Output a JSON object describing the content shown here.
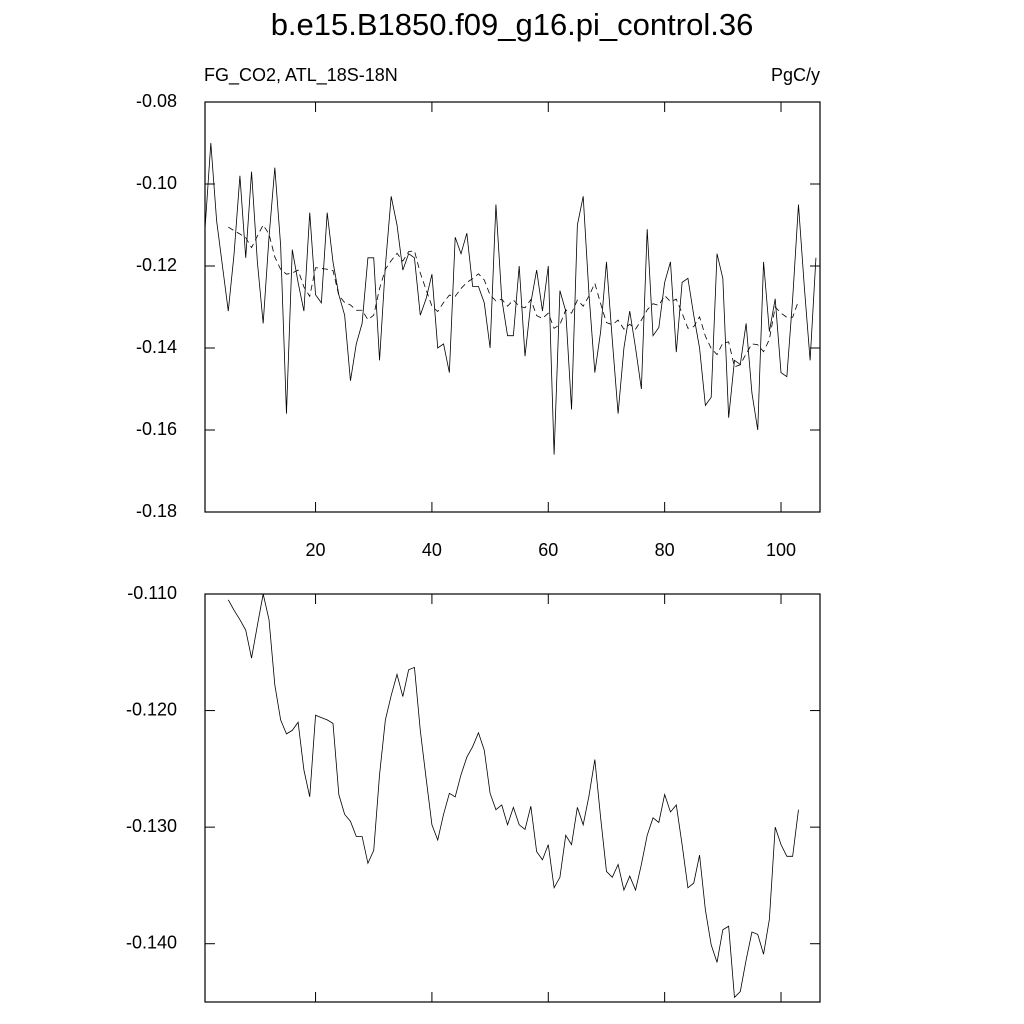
{
  "chart_data": [
    {
      "type": "line",
      "title": "b.e15.B1850.f09_g16.pi_control.36",
      "subtitle_left": "FG_CO2, ATL_18S-18N",
      "subtitle_right": "PgC/y",
      "x": [
        1,
        2,
        3,
        4,
        5,
        6,
        7,
        8,
        9,
        10,
        11,
        12,
        13,
        14,
        15,
        16,
        17,
        18,
        19,
        20,
        21,
        22,
        23,
        24,
        25,
        26,
        27,
        28,
        29,
        30,
        31,
        32,
        33,
        34,
        35,
        36,
        37,
        38,
        39,
        40,
        41,
        42,
        43,
        44,
        45,
        46,
        47,
        48,
        49,
        50,
        51,
        52,
        53,
        54,
        55,
        56,
        57,
        58,
        59,
        60,
        61,
        62,
        63,
        64,
        65,
        66,
        67,
        68,
        69,
        70,
        71,
        72,
        73,
        74,
        75,
        76,
        77,
        78,
        79,
        80,
        81,
        82,
        83,
        84,
        85,
        86,
        87,
        88,
        89,
        90,
        91,
        92,
        93,
        94,
        95,
        96,
        97,
        98,
        99,
        100,
        101,
        102,
        103,
        104,
        105,
        106
      ],
      "series": [
        {
          "color": "#000000",
          "dash": false,
          "values": [
            -0.111,
            -0.09,
            -0.109,
            -0.12,
            -0.131,
            -0.117,
            -0.098,
            -0.118,
            -0.097,
            -0.119,
            -0.134,
            -0.113,
            -0.096,
            -0.115,
            -0.156,
            -0.116,
            -0.124,
            -0.131,
            -0.107,
            -0.127,
            -0.129,
            -0.107,
            -0.119,
            -0.127,
            -0.132,
            -0.148,
            -0.139,
            -0.134,
            -0.118,
            -0.118,
            -0.143,
            -0.12,
            -0.103,
            -0.11,
            -0.121,
            -0.117,
            -0.118,
            -0.132,
            -0.128,
            -0.122,
            -0.14,
            -0.139,
            -0.146,
            -0.113,
            -0.117,
            -0.112,
            -0.125,
            -0.125,
            -0.129,
            -0.14,
            -0.105,
            -0.128,
            -0.137,
            -0.137,
            -0.12,
            -0.142,
            -0.129,
            -0.121,
            -0.131,
            -0.12,
            -0.166,
            -0.126,
            -0.131,
            -0.155,
            -0.11,
            -0.103,
            -0.127,
            -0.146,
            -0.136,
            -0.119,
            -0.138,
            -0.156,
            -0.14,
            -0.131,
            -0.14,
            -0.15,
            -0.111,
            -0.137,
            -0.135,
            -0.124,
            -0.119,
            -0.141,
            -0.124,
            -0.123,
            -0.132,
            -0.14,
            -0.154,
            -0.152,
            -0.117,
            -0.123,
            -0.157,
            -0.143,
            -0.144,
            -0.134,
            -0.151,
            -0.16,
            -0.119,
            -0.136,
            -0.128,
            -0.146,
            -0.147,
            -0.128,
            -0.105,
            -0.125,
            -0.143,
            -0.118
          ]
        },
        {
          "color": "#000000",
          "dash": true,
          "values": [
            null,
            null,
            null,
            null,
            -0.1105,
            -0.1114,
            -0.1122,
            -0.1131,
            -0.1155,
            -0.1127,
            -0.11,
            -0.1122,
            -0.1178,
            -0.1208,
            -0.122,
            -0.1217,
            -0.121,
            -0.1251,
            -0.1274,
            -0.1204,
            -0.1206,
            -0.1208,
            -0.1211,
            -0.1272,
            -0.1289,
            -0.1295,
            -0.1308,
            -0.1308,
            -0.1331,
            -0.132,
            -0.1255,
            -0.1208,
            -0.1187,
            -0.1169,
            -0.1188,
            -0.1165,
            -0.1163,
            -0.1217,
            -0.1258,
            -0.1298,
            -0.1311,
            -0.1289,
            -0.1271,
            -0.1274,
            -0.1255,
            -0.124,
            -0.1231,
            -0.1219,
            -0.1234,
            -0.1271,
            -0.1285,
            -0.1281,
            -0.1298,
            -0.1283,
            -0.1298,
            -0.1302,
            -0.1282,
            -0.1321,
            -0.1328,
            -0.1315,
            -0.1352,
            -0.1343,
            -0.1307,
            -0.1315,
            -0.1283,
            -0.1298,
            -0.1273,
            -0.1242,
            -0.1292,
            -0.1338,
            -0.1343,
            -0.1332,
            -0.1354,
            -0.1342,
            -0.1354,
            -0.1332,
            -0.1307,
            -0.1292,
            -0.1296,
            -0.1272,
            -0.1287,
            -0.1281,
            -0.1315,
            -0.1352,
            -0.1348,
            -0.1324,
            -0.1371,
            -0.1401,
            -0.1416,
            -0.1388,
            -0.1385,
            -0.1446,
            -0.1441,
            -0.1414,
            -0.139,
            -0.1392,
            -0.1409,
            -0.1379,
            -0.13,
            -0.1315,
            -0.1325,
            -0.1325,
            -0.1285,
            null,
            null,
            null
          ]
        }
      ],
      "xlim": [
        1,
        106.7
      ],
      "xticks": [
        20,
        40,
        60,
        80,
        100
      ],
      "xtick_labels": true,
      "ylim": [
        -0.18,
        -0.08
      ],
      "yticks": [
        {
          "value": -0.18,
          "label": "-0.18"
        },
        -0.16,
        -0.14,
        -0.12,
        {
          "value": -0.1,
          "label": "-0.10"
        },
        -0.08
      ]
    },
    {
      "type": "line",
      "x": [
        5,
        6,
        7,
        8,
        9,
        10,
        11,
        12,
        13,
        14,
        15,
        16,
        17,
        18,
        19,
        20,
        21,
        22,
        23,
        24,
        25,
        26,
        27,
        28,
        29,
        30,
        31,
        32,
        33,
        34,
        35,
        36,
        37,
        38,
        39,
        40,
        41,
        42,
        43,
        44,
        45,
        46,
        47,
        48,
        49,
        50,
        51,
        52,
        53,
        54,
        55,
        56,
        57,
        58,
        59,
        60,
        61,
        62,
        63,
        64,
        65,
        66,
        67,
        68,
        69,
        70,
        71,
        72,
        73,
        74,
        75,
        76,
        77,
        78,
        79,
        80,
        81,
        82,
        83,
        84,
        85,
        86,
        87,
        88,
        89,
        90,
        91,
        92,
        93,
        94,
        95,
        96,
        97,
        98,
        99,
        100,
        101,
        102,
        103
      ],
      "series": [
        {
          "color": "#000000",
          "dash": false,
          "values": [
            -0.1105,
            -0.1114,
            -0.1122,
            -0.1131,
            -0.1155,
            -0.1127,
            -0.11,
            -0.1122,
            -0.1178,
            -0.1208,
            -0.122,
            -0.1217,
            -0.121,
            -0.1251,
            -0.1274,
            -0.1204,
            -0.1206,
            -0.1208,
            -0.1211,
            -0.1272,
            -0.1289,
            -0.1295,
            -0.1308,
            -0.1308,
            -0.1331,
            -0.132,
            -0.1255,
            -0.1208,
            -0.1187,
            -0.1169,
            -0.1188,
            -0.1165,
            -0.1163,
            -0.1217,
            -0.1258,
            -0.1298,
            -0.1311,
            -0.1289,
            -0.1271,
            -0.1274,
            -0.1255,
            -0.124,
            -0.1231,
            -0.1219,
            -0.1234,
            -0.1271,
            -0.1285,
            -0.1281,
            -0.1298,
            -0.1283,
            -0.1298,
            -0.1302,
            -0.1282,
            -0.1321,
            -0.1328,
            -0.1315,
            -0.1352,
            -0.1343,
            -0.1307,
            -0.1315,
            -0.1283,
            -0.1298,
            -0.1273,
            -0.1242,
            -0.1292,
            -0.1338,
            -0.1343,
            -0.1332,
            -0.1354,
            -0.1342,
            -0.1354,
            -0.1332,
            -0.1307,
            -0.1292,
            -0.1296,
            -0.1272,
            -0.1287,
            -0.1281,
            -0.1315,
            -0.1352,
            -0.1348,
            -0.1324,
            -0.1371,
            -0.1401,
            -0.1416,
            -0.1388,
            -0.1385,
            -0.1446,
            -0.1441,
            -0.1414,
            -0.139,
            -0.1392,
            -0.1409,
            -0.1379,
            -0.13,
            -0.1315,
            -0.1325,
            -0.1325,
            -0.1285
          ]
        }
      ],
      "xlim": [
        1,
        106.7
      ],
      "xticks": [
        20,
        40,
        60,
        80,
        100
      ],
      "xtick_labels": false,
      "ylim": [
        -0.145,
        -0.11
      ],
      "yticks": [
        {
          "value": -0.14,
          "label": "-0.140"
        },
        {
          "value": -0.13,
          "label": "-0.130"
        },
        {
          "value": -0.12,
          "label": "-0.120"
        },
        {
          "value": -0.11,
          "label": "-0.110"
        }
      ]
    }
  ]
}
